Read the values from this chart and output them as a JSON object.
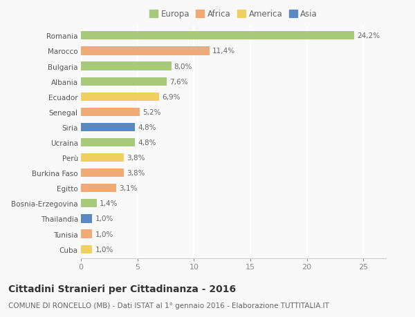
{
  "countries": [
    "Romania",
    "Marocco",
    "Bulgaria",
    "Albania",
    "Ecuador",
    "Senegal",
    "Siria",
    "Ucraina",
    "Perù",
    "Burkina Faso",
    "Egitto",
    "Bosnia-Erzegovina",
    "Thailandia",
    "Tunisia",
    "Cuba"
  ],
  "values": [
    24.2,
    11.4,
    8.0,
    7.6,
    6.9,
    5.2,
    4.8,
    4.8,
    3.8,
    3.8,
    3.1,
    1.4,
    1.0,
    1.0,
    1.0
  ],
  "labels": [
    "24,2%",
    "11,4%",
    "8,0%",
    "7,6%",
    "6,9%",
    "5,2%",
    "4,8%",
    "4,8%",
    "3,8%",
    "3,8%",
    "3,1%",
    "1,4%",
    "1,0%",
    "1,0%",
    "1,0%"
  ],
  "continents": [
    "Europa",
    "Africa",
    "Europa",
    "Europa",
    "America",
    "Africa",
    "Asia",
    "Europa",
    "America",
    "Africa",
    "Africa",
    "Europa",
    "Asia",
    "Africa",
    "America"
  ],
  "colors": {
    "Europa": "#a8c87a",
    "Africa": "#f0aa78",
    "America": "#f0d060",
    "Asia": "#5a88c0"
  },
  "xlim": [
    0,
    27
  ],
  "xticks": [
    0,
    5,
    10,
    15,
    20,
    25
  ],
  "title": "Cittadini Stranieri per Cittadinanza - 2016",
  "subtitle": "COMUNE DI RONCELLO (MB) - Dati ISTAT al 1° gennaio 2016 - Elaborazione TUTTITALIA.IT",
  "background_color": "#f9f9f9",
  "bar_height": 0.55,
  "label_fontsize": 7.5,
  "ytick_fontsize": 7.5,
  "xtick_fontsize": 8,
  "title_fontsize": 10,
  "subtitle_fontsize": 7.5,
  "legend_order": [
    "Europa",
    "Africa",
    "America",
    "Asia"
  ]
}
